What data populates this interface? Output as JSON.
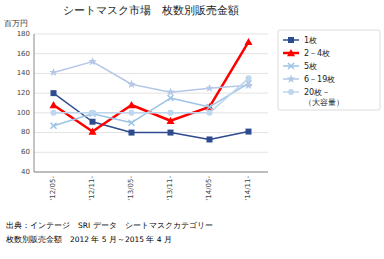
{
  "chart_data": {
    "type": "line",
    "title": "シートマスク市場　枚数別販売金額",
    "y_label": "百万円",
    "categories": [
      "'12/05-",
      "'12/11-",
      "'13/05-",
      "'13/11-",
      "'14/05-",
      "'14/11-"
    ],
    "series": [
      {
        "name": "1枚",
        "color": "#2E4B8F",
        "marker": "square",
        "values": [
          120,
          91,
          80,
          80,
          73,
          81
        ]
      },
      {
        "name": "2－4枚",
        "color": "#FF0000",
        "marker": "triangle",
        "values": [
          108,
          81,
          108,
          92,
          106,
          172
        ]
      },
      {
        "name": "5枚",
        "color": "#9DC3E6",
        "marker": "x",
        "values": [
          87,
          99,
          90,
          115,
          106,
          130
        ]
      },
      {
        "name": "6－19枚",
        "color": "#B4C7E7",
        "marker": "star",
        "values": [
          141,
          152,
          129,
          121,
          125,
          128
        ]
      },
      {
        "name": "20枚－\n（大容量）",
        "color": "#BDD7EE",
        "marker": "circle",
        "values": [
          100,
          100,
          100,
          100,
          100,
          135
        ]
      }
    ],
    "ylim": [
      40,
      180
    ],
    "yticks": [
      40,
      60,
      80,
      100,
      120,
      140,
      160,
      180
    ],
    "grid": true,
    "legend": "right",
    "annotations": [
      "出典：インテージ　SRI データ　シートマスクカテゴリー",
      "枚数別販売金額　2012 年 5 月～2015 年 4 月"
    ]
  }
}
